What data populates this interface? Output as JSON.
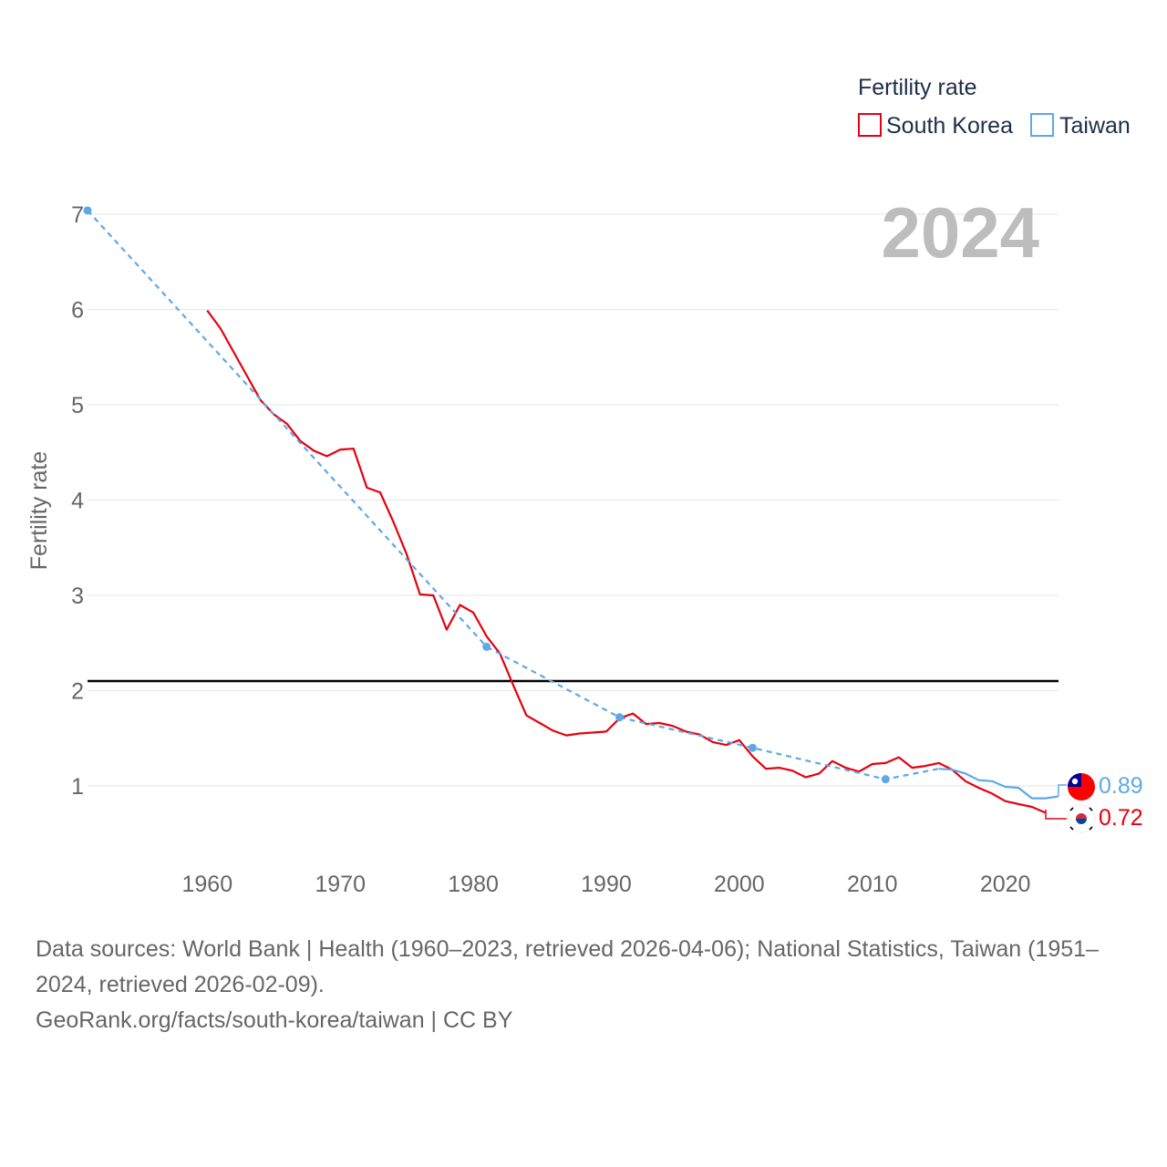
{
  "chart_data": {
    "type": "line",
    "ylabel": "Fertility rate",
    "year_label": "2024",
    "ylim": [
      0,
      7.3
    ],
    "xlim": [
      1951,
      2024
    ],
    "yticks": [
      1,
      2,
      3,
      4,
      5,
      6,
      7
    ],
    "xticks": [
      1960,
      1970,
      1980,
      1990,
      2000,
      2010,
      2020
    ],
    "reference_line": {
      "y": 2.1
    },
    "legend": {
      "title": "Fertility rate",
      "position": "top-right"
    },
    "series": [
      {
        "name": "South Korea",
        "color": "#e6000f",
        "style": "solid",
        "end_label": "0.72",
        "flag": "south-korea-flag",
        "points": [
          [
            1960,
            5.99
          ],
          [
            1961,
            5.8
          ],
          [
            1962,
            5.55
          ],
          [
            1963,
            5.3
          ],
          [
            1964,
            5.05
          ],
          [
            1965,
            4.9
          ],
          [
            1966,
            4.8
          ],
          [
            1967,
            4.62
          ],
          [
            1968,
            4.52
          ],
          [
            1969,
            4.46
          ],
          [
            1970,
            4.53
          ],
          [
            1971,
            4.54
          ],
          [
            1972,
            4.13
          ],
          [
            1973,
            4.08
          ],
          [
            1974,
            3.77
          ],
          [
            1975,
            3.43
          ],
          [
            1976,
            3.01
          ],
          [
            1977,
            3.0
          ],
          [
            1978,
            2.64
          ],
          [
            1979,
            2.9
          ],
          [
            1980,
            2.82
          ],
          [
            1981,
            2.57
          ],
          [
            1982,
            2.39
          ],
          [
            1983,
            2.06
          ],
          [
            1984,
            1.74
          ],
          [
            1985,
            1.66
          ],
          [
            1986,
            1.58
          ],
          [
            1987,
            1.53
          ],
          [
            1988,
            1.55
          ],
          [
            1989,
            1.56
          ],
          [
            1990,
            1.57
          ],
          [
            1991,
            1.71
          ],
          [
            1992,
            1.76
          ],
          [
            1993,
            1.65
          ],
          [
            1994,
            1.66
          ],
          [
            1995,
            1.63
          ],
          [
            1996,
            1.57
          ],
          [
            1997,
            1.54
          ],
          [
            1998,
            1.46
          ],
          [
            1999,
            1.43
          ],
          [
            2000,
            1.48
          ],
          [
            2001,
            1.31
          ],
          [
            2002,
            1.18
          ],
          [
            2003,
            1.19
          ],
          [
            2004,
            1.16
          ],
          [
            2005,
            1.09
          ],
          [
            2006,
            1.13
          ],
          [
            2007,
            1.26
          ],
          [
            2008,
            1.19
          ],
          [
            2009,
            1.15
          ],
          [
            2010,
            1.23
          ],
          [
            2011,
            1.24
          ],
          [
            2012,
            1.3
          ],
          [
            2013,
            1.19
          ],
          [
            2014,
            1.21
          ],
          [
            2015,
            1.24
          ],
          [
            2016,
            1.17
          ],
          [
            2017,
            1.05
          ],
          [
            2018,
            0.98
          ],
          [
            2019,
            0.92
          ],
          [
            2020,
            0.84
          ],
          [
            2021,
            0.81
          ],
          [
            2022,
            0.78
          ],
          [
            2023,
            0.72
          ]
        ]
      },
      {
        "name": "Taiwan",
        "color": "#5fa8e6",
        "style": "dashed-then-solid",
        "end_label": "0.89",
        "flag": "taiwan-flag",
        "points": [
          [
            1951,
            7.04
          ],
          [
            1981,
            2.46
          ],
          [
            1991,
            1.72
          ],
          [
            2001,
            1.4
          ],
          [
            2011,
            1.07
          ],
          [
            2015,
            1.18
          ],
          [
            2016,
            1.17
          ],
          [
            2017,
            1.13
          ],
          [
            2018,
            1.06
          ],
          [
            2019,
            1.05
          ],
          [
            2020,
            0.99
          ],
          [
            2021,
            0.98
          ],
          [
            2022,
            0.87
          ],
          [
            2023,
            0.87
          ],
          [
            2024,
            0.89
          ]
        ]
      }
    ]
  },
  "footer": {
    "sources": "Data sources: World Bank | Health (1960–2023, retrieved 2026-04-06); National Statistics, Taiwan (1951–2024, retrieved 2026-02-09).",
    "credit": "GeoRank.org/facts/south-korea/taiwan | CC BY"
  }
}
